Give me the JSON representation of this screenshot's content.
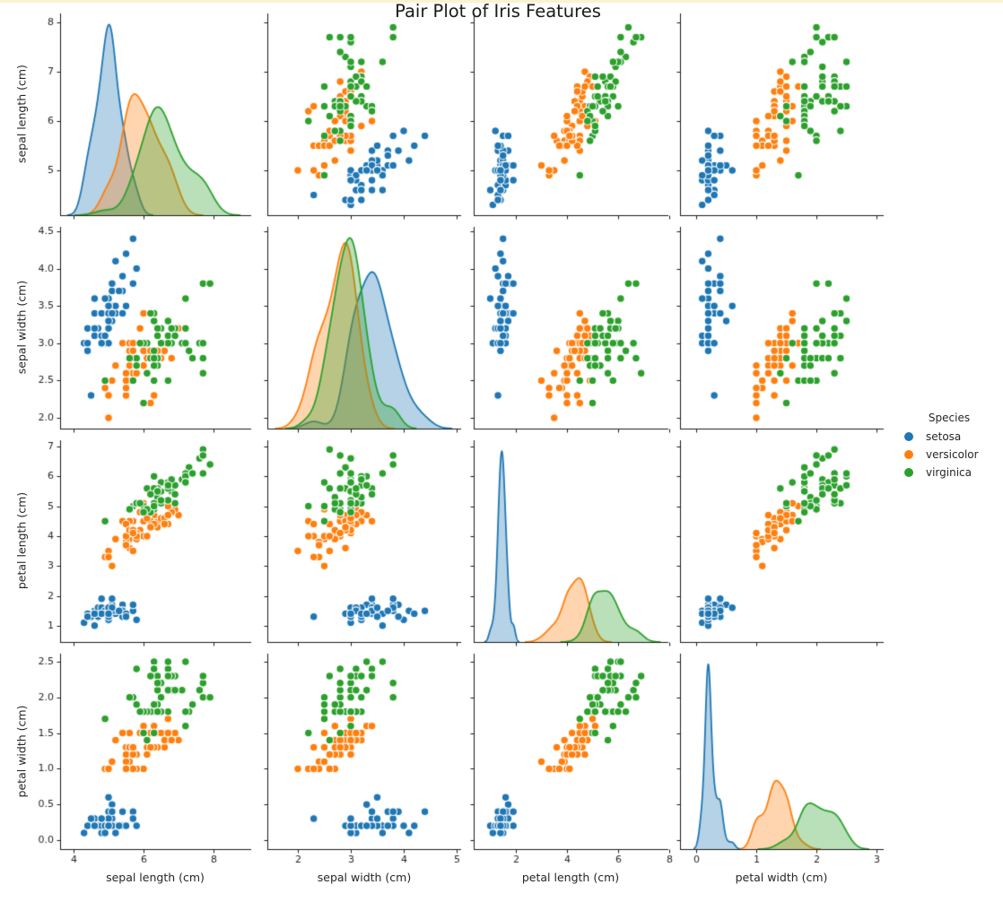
{
  "page": {
    "top_stripe_color": "#fbf2cf",
    "background_color": "#ffffff"
  },
  "chart_data": {
    "type": "pairplot",
    "title": "Pair Plot of Iris Features",
    "diag_kind": "kde",
    "grid": "off",
    "axis_color": "#1a1a1a",
    "tick_label_color": "#262626",
    "marker": {
      "radius": 4.3,
      "edge_color": "#ffffff"
    },
    "kde_fill_alpha": 0.33,
    "legend": {
      "title": "Species",
      "position": "right-center",
      "entries": [
        {
          "label": "setosa",
          "color": "#1f77b4"
        },
        {
          "label": "versicolor",
          "color": "#ff7f0e"
        },
        {
          "label": "virginica",
          "color": "#2ca02c"
        }
      ]
    },
    "variables": [
      {
        "key": "sepal_length",
        "label": "sepal length (cm)",
        "x_range": [
          3.615,
          9.077
        ],
        "y_range": [
          4.09,
          8.18
        ],
        "x_ticks": {
          "values": [
            4,
            6,
            8
          ],
          "labels": [
            "4",
            "6",
            "8"
          ]
        },
        "y_ticks": {
          "values": [
            5,
            6,
            7,
            8
          ],
          "labels": [
            "5",
            "6",
            "7",
            "8"
          ]
        }
      },
      {
        "key": "sepal_width",
        "label": "sepal width (cm)",
        "x_range": [
          1.424,
          5.085
        ],
        "y_range": [
          1.857,
          4.56
        ],
        "x_ticks": {
          "values": [
            2,
            3,
            4,
            5
          ],
          "labels": [
            "2",
            "3",
            "4",
            "5"
          ]
        },
        "y_ticks": {
          "values": [
            2.0,
            2.5,
            3.0,
            3.5,
            4.0,
            4.5
          ],
          "labels": [
            "2.0",
            "2.5",
            "3.0",
            "3.5",
            "4.0",
            "4.5"
          ]
        }
      },
      {
        "key": "petal_length",
        "label": "petal length (cm)",
        "x_range": [
          0.351,
          7.965
        ],
        "y_range": [
          0.455,
          7.21
        ],
        "x_ticks": {
          "values": [
            2,
            4,
            6,
            8
          ],
          "labels": [
            "2",
            "4",
            "6",
            "8"
          ]
        },
        "y_ticks": {
          "values": [
            1,
            2,
            3,
            4,
            5,
            6,
            7
          ],
          "labels": [
            "1",
            "2",
            "3",
            "4",
            "5",
            "6",
            "7"
          ]
        }
      },
      {
        "key": "petal_width",
        "label": "petal width (cm)",
        "x_range": [
          -0.269,
          3.119
        ],
        "y_range": [
          -0.126,
          2.613
        ],
        "x_ticks": {
          "values": [
            0,
            1,
            2,
            3
          ],
          "labels": [
            "0",
            "1",
            "2",
            "3"
          ]
        },
        "y_ticks": {
          "values": [
            0.0,
            0.5,
            1.0,
            1.5,
            2.0,
            2.5
          ],
          "labels": [
            "0.0",
            "0.5",
            "1.0",
            "1.5",
            "2.0",
            "2.5"
          ]
        }
      }
    ],
    "series": [
      {
        "name": "setosa",
        "color": "#1f77b4",
        "data": [
          [
            5.1,
            3.5,
            1.4,
            0.2
          ],
          [
            4.9,
            3.0,
            1.4,
            0.2
          ],
          [
            4.7,
            3.2,
            1.3,
            0.2
          ],
          [
            4.6,
            3.1,
            1.5,
            0.2
          ],
          [
            5.0,
            3.6,
            1.4,
            0.2
          ],
          [
            5.4,
            3.9,
            1.7,
            0.4
          ],
          [
            4.6,
            3.4,
            1.4,
            0.3
          ],
          [
            5.0,
            3.4,
            1.5,
            0.2
          ],
          [
            4.4,
            2.9,
            1.4,
            0.2
          ],
          [
            4.9,
            3.1,
            1.5,
            0.1
          ],
          [
            5.4,
            3.7,
            1.5,
            0.2
          ],
          [
            4.8,
            3.4,
            1.6,
            0.2
          ],
          [
            4.8,
            3.0,
            1.4,
            0.1
          ],
          [
            4.3,
            3.0,
            1.1,
            0.1
          ],
          [
            5.8,
            4.0,
            1.2,
            0.2
          ],
          [
            5.7,
            4.4,
            1.5,
            0.4
          ],
          [
            5.4,
            3.9,
            1.3,
            0.4
          ],
          [
            5.1,
            3.5,
            1.4,
            0.3
          ],
          [
            5.7,
            3.8,
            1.7,
            0.3
          ],
          [
            5.1,
            3.8,
            1.5,
            0.3
          ],
          [
            5.4,
            3.4,
            1.7,
            0.2
          ],
          [
            5.1,
            3.7,
            1.5,
            0.4
          ],
          [
            4.6,
            3.6,
            1.0,
            0.2
          ],
          [
            5.1,
            3.3,
            1.7,
            0.5
          ],
          [
            4.8,
            3.4,
            1.9,
            0.2
          ],
          [
            5.0,
            3.0,
            1.6,
            0.2
          ],
          [
            5.0,
            3.4,
            1.6,
            0.4
          ],
          [
            5.2,
            3.5,
            1.5,
            0.2
          ],
          [
            5.2,
            3.4,
            1.4,
            0.2
          ],
          [
            4.7,
            3.2,
            1.6,
            0.2
          ],
          [
            4.8,
            3.1,
            1.6,
            0.2
          ],
          [
            5.4,
            3.4,
            1.5,
            0.4
          ],
          [
            5.2,
            4.1,
            1.5,
            0.1
          ],
          [
            5.5,
            4.2,
            1.4,
            0.2
          ],
          [
            4.9,
            3.1,
            1.5,
            0.2
          ],
          [
            5.0,
            3.2,
            1.2,
            0.2
          ],
          [
            5.5,
            3.5,
            1.3,
            0.2
          ],
          [
            4.9,
            3.6,
            1.4,
            0.1
          ],
          [
            4.4,
            3.0,
            1.3,
            0.2
          ],
          [
            5.1,
            3.4,
            1.5,
            0.2
          ],
          [
            5.0,
            3.5,
            1.3,
            0.3
          ],
          [
            4.5,
            2.3,
            1.3,
            0.3
          ],
          [
            4.4,
            3.2,
            1.3,
            0.2
          ],
          [
            5.0,
            3.5,
            1.6,
            0.6
          ],
          [
            5.1,
            3.8,
            1.9,
            0.4
          ],
          [
            4.8,
            3.0,
            1.4,
            0.3
          ],
          [
            5.1,
            3.8,
            1.6,
            0.2
          ],
          [
            4.6,
            3.2,
            1.4,
            0.2
          ],
          [
            5.3,
            3.7,
            1.5,
            0.2
          ],
          [
            5.0,
            3.3,
            1.4,
            0.2
          ]
        ]
      },
      {
        "name": "versicolor",
        "color": "#ff7f0e",
        "data": [
          [
            7.0,
            3.2,
            4.7,
            1.4
          ],
          [
            6.4,
            3.2,
            4.5,
            1.5
          ],
          [
            6.9,
            3.1,
            4.9,
            1.5
          ],
          [
            5.5,
            2.3,
            4.0,
            1.3
          ],
          [
            6.5,
            2.8,
            4.6,
            1.5
          ],
          [
            5.7,
            2.8,
            4.5,
            1.3
          ],
          [
            6.3,
            3.3,
            4.7,
            1.6
          ],
          [
            4.9,
            2.4,
            3.3,
            1.0
          ],
          [
            6.6,
            2.9,
            4.6,
            1.3
          ],
          [
            5.2,
            2.7,
            3.9,
            1.4
          ],
          [
            5.0,
            2.0,
            3.5,
            1.0
          ],
          [
            5.9,
            3.0,
            4.2,
            1.5
          ],
          [
            6.0,
            2.2,
            4.0,
            1.0
          ],
          [
            6.1,
            2.9,
            4.7,
            1.4
          ],
          [
            5.6,
            2.9,
            3.6,
            1.3
          ],
          [
            6.7,
            3.1,
            4.4,
            1.4
          ],
          [
            5.6,
            3.0,
            4.5,
            1.5
          ],
          [
            5.8,
            2.7,
            4.1,
            1.0
          ],
          [
            6.2,
            2.2,
            4.5,
            1.5
          ],
          [
            5.6,
            2.5,
            3.9,
            1.1
          ],
          [
            5.9,
            3.2,
            4.8,
            1.8
          ],
          [
            6.1,
            2.8,
            4.0,
            1.3
          ],
          [
            6.3,
            2.5,
            4.9,
            1.5
          ],
          [
            6.1,
            2.8,
            4.7,
            1.2
          ],
          [
            6.4,
            2.9,
            4.3,
            1.3
          ],
          [
            6.6,
            3.0,
            4.4,
            1.4
          ],
          [
            6.8,
            2.8,
            4.8,
            1.4
          ],
          [
            6.7,
            3.0,
            5.0,
            1.7
          ],
          [
            6.0,
            2.9,
            4.5,
            1.5
          ],
          [
            5.7,
            2.6,
            3.5,
            1.0
          ],
          [
            5.5,
            2.4,
            3.8,
            1.1
          ],
          [
            5.5,
            2.4,
            3.7,
            1.0
          ],
          [
            5.8,
            2.7,
            3.9,
            1.2
          ],
          [
            6.0,
            2.7,
            5.1,
            1.6
          ],
          [
            5.4,
            3.0,
            4.5,
            1.5
          ],
          [
            6.0,
            3.4,
            4.5,
            1.6
          ],
          [
            6.7,
            3.1,
            4.7,
            1.5
          ],
          [
            6.3,
            2.3,
            4.4,
            1.3
          ],
          [
            5.6,
            3.0,
            4.1,
            1.3
          ],
          [
            5.5,
            2.5,
            4.0,
            1.3
          ],
          [
            5.5,
            2.6,
            4.4,
            1.2
          ],
          [
            6.1,
            3.0,
            4.6,
            1.4
          ],
          [
            5.8,
            2.6,
            4.0,
            1.2
          ],
          [
            5.0,
            2.3,
            3.3,
            1.0
          ],
          [
            5.6,
            2.7,
            4.2,
            1.3
          ],
          [
            5.7,
            3.0,
            4.2,
            1.2
          ],
          [
            5.7,
            2.9,
            4.2,
            1.3
          ],
          [
            6.2,
            2.9,
            4.3,
            1.3
          ],
          [
            5.1,
            2.5,
            3.0,
            1.1
          ],
          [
            5.7,
            2.8,
            4.1,
            1.3
          ]
        ]
      },
      {
        "name": "virginica",
        "color": "#2ca02c",
        "data": [
          [
            6.3,
            3.3,
            6.0,
            2.5
          ],
          [
            5.8,
            2.7,
            5.1,
            1.9
          ],
          [
            7.1,
            3.0,
            5.9,
            2.1
          ],
          [
            6.3,
            2.9,
            5.6,
            1.8
          ],
          [
            6.5,
            3.0,
            5.8,
            2.2
          ],
          [
            7.6,
            3.0,
            6.6,
            2.1
          ],
          [
            4.9,
            2.5,
            4.5,
            1.7
          ],
          [
            7.3,
            2.9,
            6.3,
            1.8
          ],
          [
            6.7,
            2.5,
            5.8,
            1.8
          ],
          [
            7.2,
            3.6,
            6.1,
            2.5
          ],
          [
            6.5,
            3.2,
            5.1,
            2.0
          ],
          [
            6.4,
            2.7,
            5.3,
            1.9
          ],
          [
            6.8,
            3.0,
            5.5,
            2.1
          ],
          [
            5.7,
            2.5,
            5.0,
            2.0
          ],
          [
            5.8,
            2.8,
            5.1,
            2.4
          ],
          [
            6.4,
            3.2,
            5.3,
            2.3
          ],
          [
            6.5,
            3.0,
            5.5,
            1.8
          ],
          [
            7.7,
            3.8,
            6.7,
            2.2
          ],
          [
            7.7,
            2.6,
            6.9,
            2.3
          ],
          [
            6.0,
            2.2,
            5.0,
            1.5
          ],
          [
            6.9,
            3.2,
            5.7,
            2.3
          ],
          [
            5.6,
            2.8,
            4.9,
            2.0
          ],
          [
            7.7,
            2.8,
            6.7,
            2.0
          ],
          [
            6.3,
            2.7,
            4.9,
            1.8
          ],
          [
            6.7,
            3.3,
            5.7,
            2.1
          ],
          [
            7.2,
            3.2,
            6.0,
            1.8
          ],
          [
            6.2,
            2.8,
            4.8,
            1.8
          ],
          [
            6.1,
            3.0,
            4.9,
            1.8
          ],
          [
            6.4,
            2.8,
            5.6,
            2.1
          ],
          [
            7.2,
            3.0,
            5.8,
            1.6
          ],
          [
            7.4,
            2.8,
            6.1,
            1.9
          ],
          [
            7.9,
            3.8,
            6.4,
            2.0
          ],
          [
            6.4,
            2.8,
            5.6,
            2.2
          ],
          [
            6.3,
            2.8,
            5.1,
            1.5
          ],
          [
            6.1,
            2.6,
            5.6,
            1.4
          ],
          [
            7.7,
            3.0,
            6.1,
            2.3
          ],
          [
            6.3,
            3.4,
            5.6,
            2.4
          ],
          [
            6.4,
            3.1,
            5.5,
            1.8
          ],
          [
            6.0,
            3.0,
            4.8,
            1.8
          ],
          [
            6.9,
            3.1,
            5.4,
            2.1
          ],
          [
            6.7,
            3.1,
            5.6,
            2.4
          ],
          [
            6.9,
            3.1,
            5.1,
            2.3
          ],
          [
            5.8,
            2.7,
            5.1,
            1.9
          ],
          [
            6.8,
            3.2,
            5.9,
            2.3
          ],
          [
            6.7,
            3.3,
            5.7,
            2.5
          ],
          [
            6.7,
            3.0,
            5.2,
            2.3
          ],
          [
            6.3,
            2.5,
            5.0,
            1.9
          ],
          [
            6.5,
            3.0,
            5.2,
            2.0
          ],
          [
            6.2,
            3.4,
            5.4,
            2.3
          ],
          [
            5.9,
            3.0,
            5.1,
            1.8
          ]
        ]
      }
    ]
  }
}
